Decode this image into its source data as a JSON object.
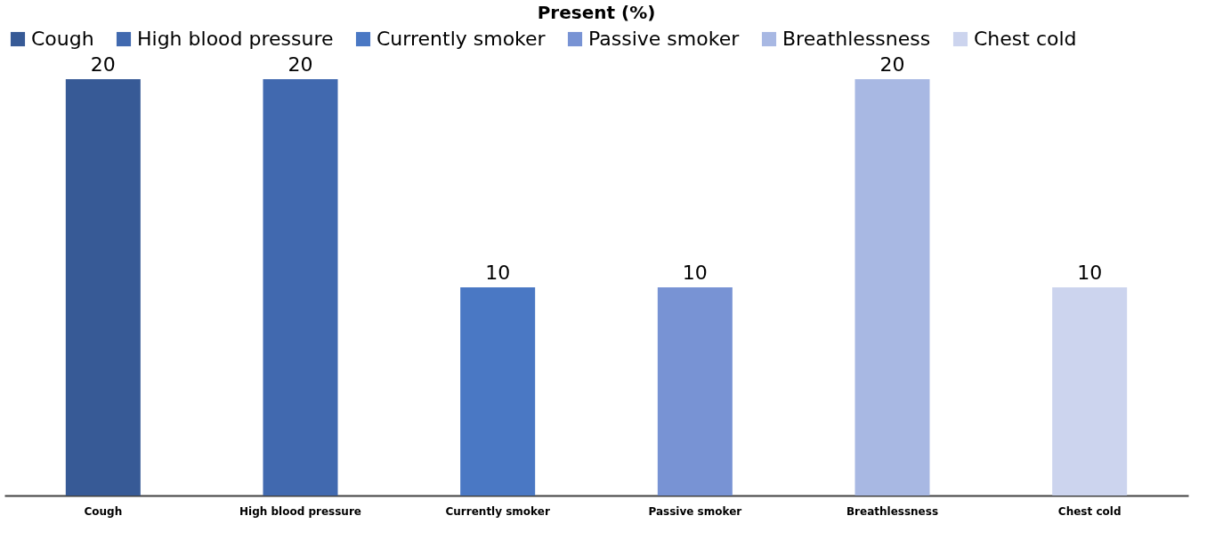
{
  "chart_data": {
    "type": "bar",
    "title": "Present (%)",
    "categories": [
      "Cough",
      "High blood pressure",
      "Currently smoker",
      "Passive smoker",
      "Breathlessness",
      "Chest cold"
    ],
    "series": [
      {
        "name": "Cough",
        "color": "#375a96",
        "values": [
          20,
          null,
          null,
          null,
          null,
          null
        ]
      },
      {
        "name": "High blood pressure",
        "color": "#4169af",
        "values": [
          null,
          20,
          null,
          null,
          null,
          null
        ]
      },
      {
        "name": "Currently smoker",
        "color": "#4a78c4",
        "values": [
          null,
          null,
          10,
          null,
          null,
          null
        ]
      },
      {
        "name": "Passive smoker",
        "color": "#7893d4",
        "values": [
          null,
          null,
          null,
          10,
          null,
          null
        ]
      },
      {
        "name": "Breathlessness",
        "color": "#a8b8e3",
        "values": [
          null,
          null,
          null,
          null,
          20,
          null
        ]
      },
      {
        "name": "Chest cold",
        "color": "#ccd4ee",
        "values": [
          null,
          null,
          null,
          null,
          null,
          10
        ]
      }
    ],
    "data_labels": true,
    "legend": "top",
    "grid": false
  }
}
